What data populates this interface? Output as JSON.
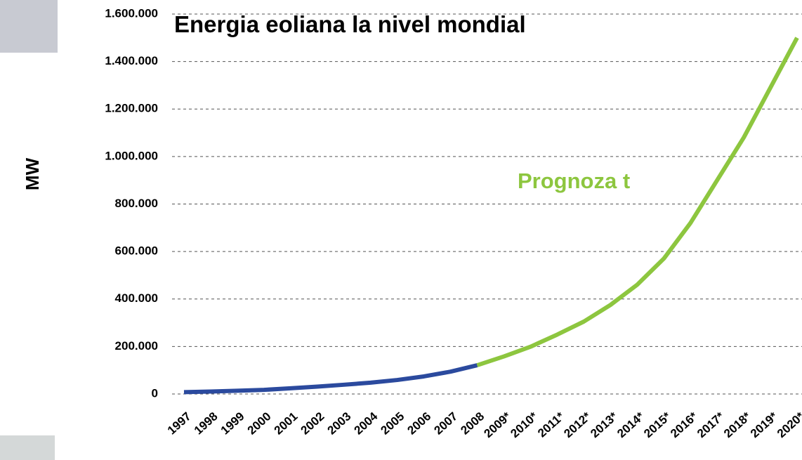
{
  "chart_data": {
    "type": "line",
    "title": "Energia eoliana la nivel mondial",
    "y_label": "MW",
    "annotation": "Prognoza t",
    "categories": [
      "1997",
      "1998",
      "1999",
      "2000",
      "2001",
      "2002",
      "2003",
      "2004",
      "2005",
      "2006",
      "2007",
      "2008",
      "2009*",
      "2010*",
      "2011*",
      "2012*",
      "2013*",
      "2014*",
      "2015*",
      "2016*",
      "2017*",
      "2018*",
      "2019*",
      "2020*"
    ],
    "series": [
      {
        "color": "#2b4a9e",
        "values": [
          7600,
          10200,
          13600,
          17400,
          24000,
          31000,
          39000,
          47600,
          59000,
          74000,
          94000,
          121000,
          null,
          null,
          null,
          null,
          null,
          null,
          null,
          null,
          null,
          null,
          null,
          null
        ]
      },
      {
        "color": "#8dc63f",
        "values": [
          null,
          null,
          null,
          null,
          null,
          null,
          null,
          null,
          null,
          null,
          null,
          121000,
          158000,
          199000,
          250000,
          305000,
          375000,
          460000,
          570000,
          720000,
          900000,
          1080000,
          1290000,
          1500000
        ]
      }
    ],
    "ylim": [
      0,
      1600000
    ],
    "yticks": [
      0,
      {
        "value": 200000,
        "label": "200.000"
      },
      {
        "value": 400000,
        "label": "400.000"
      },
      {
        "value": 600000,
        "label": "600.000"
      },
      {
        "value": 800000,
        "label": "800.000"
      },
      {
        "value": 1000000,
        "label": "1.000.000"
      },
      {
        "value": 1200000,
        "label": "1.200.000"
      },
      {
        "value": 1400000,
        "label": "1.400.000"
      },
      {
        "value": 1600000,
        "label": "1.600.000"
      }
    ],
    "grid": true
  }
}
